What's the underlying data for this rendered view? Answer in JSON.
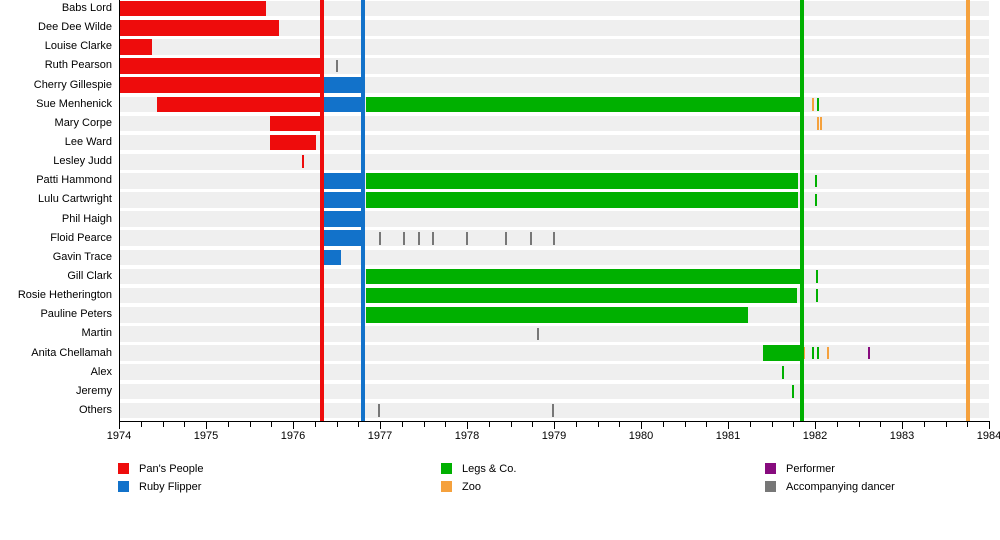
{
  "chart_data": {
    "type": "timeline",
    "title": "",
    "x_axis": {
      "min": 1974,
      "max": 1984,
      "major_tick_step": 1,
      "minor_tick_step": 0.25,
      "tick_labels": [
        "1974",
        "1975",
        "1976",
        "1977",
        "1978",
        "1979",
        "1980",
        "1981",
        "1982",
        "1983",
        "1984"
      ]
    },
    "colors": {
      "pans_people": "#ee0c0c",
      "ruby_flipper": "#1272ca",
      "legs_co": "#00b000",
      "zoo": "#f5a13d",
      "performer": "#870b7e",
      "accompanying": "#777777"
    },
    "legend": [
      {
        "label": "Pan's People",
        "group": "pans_people"
      },
      {
        "label": "Ruby Flipper",
        "group": "ruby_flipper"
      },
      {
        "label": "Legs & Co.",
        "group": "legs_co"
      },
      {
        "label": "Zoo",
        "group": "zoo"
      },
      {
        "label": "Performer",
        "group": "performer"
      },
      {
        "label": "Accompanying dancer",
        "group": "accompanying"
      }
    ],
    "dissolution_lines": [
      {
        "group": "pans_people",
        "year": 1976.33
      },
      {
        "group": "ruby_flipper",
        "year": 1976.8
      },
      {
        "group": "legs_co",
        "year": 1981.85
      },
      {
        "group": "zoo",
        "year": 1983.76
      }
    ],
    "rows": [
      {
        "name": "Babs Lord",
        "segments": [
          {
            "group": "pans_people",
            "start": 1974.0,
            "end": 1975.69
          }
        ],
        "ticks": []
      },
      {
        "name": "Dee Dee Wilde",
        "segments": [
          {
            "group": "pans_people",
            "start": 1974.0,
            "end": 1975.84
          }
        ],
        "ticks": []
      },
      {
        "name": "Louise Clarke",
        "segments": [
          {
            "group": "pans_people",
            "start": 1974.0,
            "end": 1974.38
          }
        ],
        "ticks": []
      },
      {
        "name": "Ruth Pearson",
        "segments": [
          {
            "group": "pans_people",
            "start": 1974.0,
            "end": 1976.36
          }
        ],
        "ticks": [
          {
            "group": "accompanying",
            "year": 1976.5
          }
        ]
      },
      {
        "name": "Cherry Gillespie",
        "segments": [
          {
            "group": "pans_people",
            "start": 1974.0,
            "end": 1976.33
          },
          {
            "group": "ruby_flipper",
            "start": 1976.33,
            "end": 1976.8
          }
        ],
        "ticks": []
      },
      {
        "name": "Sue Menhenick",
        "segments": [
          {
            "group": "pans_people",
            "start": 1974.44,
            "end": 1976.33
          },
          {
            "group": "ruby_flipper",
            "start": 1976.33,
            "end": 1976.8
          },
          {
            "group": "legs_co",
            "start": 1976.84,
            "end": 1981.85
          }
        ],
        "ticks": [
          {
            "group": "zoo",
            "year": 1981.98
          },
          {
            "group": "legs_co",
            "year": 1982.03
          }
        ]
      },
      {
        "name": "Mary Corpe",
        "segments": [
          {
            "group": "pans_people",
            "start": 1975.74,
            "end": 1976.36
          }
        ],
        "ticks": [
          {
            "group": "zoo",
            "year": 1982.03
          },
          {
            "group": "zoo",
            "year": 1982.07
          }
        ]
      },
      {
        "name": "Lee Ward",
        "segments": [
          {
            "group": "pans_people",
            "start": 1975.74,
            "end": 1976.26
          }
        ],
        "ticks": []
      },
      {
        "name": "Lesley Judd",
        "segments": [],
        "ticks": [
          {
            "group": "pans_people",
            "year": 1976.11
          }
        ]
      },
      {
        "name": "Patti Hammond",
        "segments": [
          {
            "group": "ruby_flipper",
            "start": 1976.36,
            "end": 1976.8
          },
          {
            "group": "legs_co",
            "start": 1976.84,
            "end": 1981.81
          }
        ],
        "ticks": [
          {
            "group": "legs_co",
            "year": 1982.01
          }
        ]
      },
      {
        "name": "Lulu Cartwright",
        "segments": [
          {
            "group": "ruby_flipper",
            "start": 1976.36,
            "end": 1976.8
          },
          {
            "group": "legs_co",
            "start": 1976.84,
            "end": 1981.81
          }
        ],
        "ticks": [
          {
            "group": "legs_co",
            "year": 1982.01
          }
        ]
      },
      {
        "name": "Phil Haigh",
        "segments": [
          {
            "group": "ruby_flipper",
            "start": 1976.36,
            "end": 1976.8
          }
        ],
        "ticks": []
      },
      {
        "name": "Floid Pearce",
        "segments": [
          {
            "group": "ruby_flipper",
            "start": 1976.36,
            "end": 1976.8
          }
        ],
        "ticks": [
          {
            "group": "accompanying",
            "year": 1977.0
          },
          {
            "group": "accompanying",
            "year": 1977.28
          },
          {
            "group": "accompanying",
            "year": 1977.45
          },
          {
            "group": "accompanying",
            "year": 1977.61
          },
          {
            "group": "accompanying",
            "year": 1978.0
          },
          {
            "group": "accompanying",
            "year": 1978.45
          },
          {
            "group": "accompanying",
            "year": 1978.74
          },
          {
            "group": "accompanying",
            "year": 1979.0
          }
        ]
      },
      {
        "name": "Gavin Trace",
        "segments": [
          {
            "group": "ruby_flipper",
            "start": 1976.34,
            "end": 1976.55
          }
        ],
        "ticks": []
      },
      {
        "name": "Gill Clark",
        "segments": [
          {
            "group": "legs_co",
            "start": 1976.84,
            "end": 1981.83
          }
        ],
        "ticks": [
          {
            "group": "legs_co",
            "year": 1982.02
          }
        ]
      },
      {
        "name": "Rosie Hetherington",
        "segments": [
          {
            "group": "legs_co",
            "start": 1976.84,
            "end": 1981.79
          }
        ],
        "ticks": [
          {
            "group": "legs_co",
            "year": 1982.02
          }
        ]
      },
      {
        "name": "Pauline Peters",
        "segments": [
          {
            "group": "legs_co",
            "start": 1976.84,
            "end": 1981.23
          }
        ],
        "ticks": []
      },
      {
        "name": "Martin",
        "segments": [],
        "ticks": [
          {
            "group": "accompanying",
            "year": 1978.82
          }
        ]
      },
      {
        "name": "Anita Chellamah",
        "segments": [
          {
            "group": "legs_co",
            "start": 1981.4,
            "end": 1981.85
          }
        ],
        "ticks": [
          {
            "group": "zoo",
            "year": 1981.87
          },
          {
            "group": "legs_co",
            "year": 1981.98
          },
          {
            "group": "legs_co",
            "year": 1982.03
          },
          {
            "group": "zoo",
            "year": 1982.15
          },
          {
            "group": "performer",
            "year": 1982.62
          }
        ]
      },
      {
        "name": "Alex",
        "segments": [],
        "ticks": [
          {
            "group": "legs_co",
            "year": 1981.63
          }
        ]
      },
      {
        "name": "Jeremy",
        "segments": [],
        "ticks": [
          {
            "group": "legs_co",
            "year": 1981.75
          }
        ]
      },
      {
        "name": "Others",
        "segments": [],
        "ticks": [
          {
            "group": "accompanying",
            "year": 1976.99
          },
          {
            "group": "accompanying",
            "year": 1978.99
          }
        ]
      }
    ]
  }
}
